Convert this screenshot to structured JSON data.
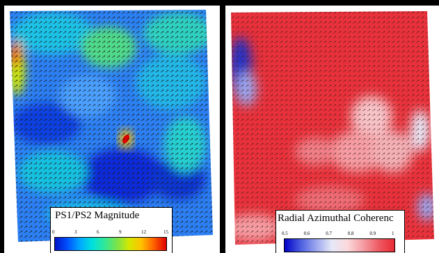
{
  "left_panel": {
    "legend_title": "PS1/PS2 Magnitude",
    "ticks": [
      "0",
      "3",
      "6",
      "9",
      "12",
      "15"
    ],
    "colormap": [
      "#0015c8",
      "#0050ff",
      "#00a6ff",
      "#00e0e0",
      "#30e89a",
      "#79e34b",
      "#d6e800",
      "#ffc000",
      "#ff6000",
      "#e00000"
    ]
  },
  "right_panel": {
    "legend_title": "Radial Azimuthal Coherenc",
    "ticks": [
      "0.5",
      "0.6",
      "0.7",
      "0.8",
      "0.9",
      "1"
    ],
    "colormap": [
      "#0000c8",
      "#4a5de0",
      "#9aa5ee",
      "#e6e9f8",
      "#fbd9dc",
      "#f59da3",
      "#ee5b64",
      "#e82a34"
    ]
  }
}
